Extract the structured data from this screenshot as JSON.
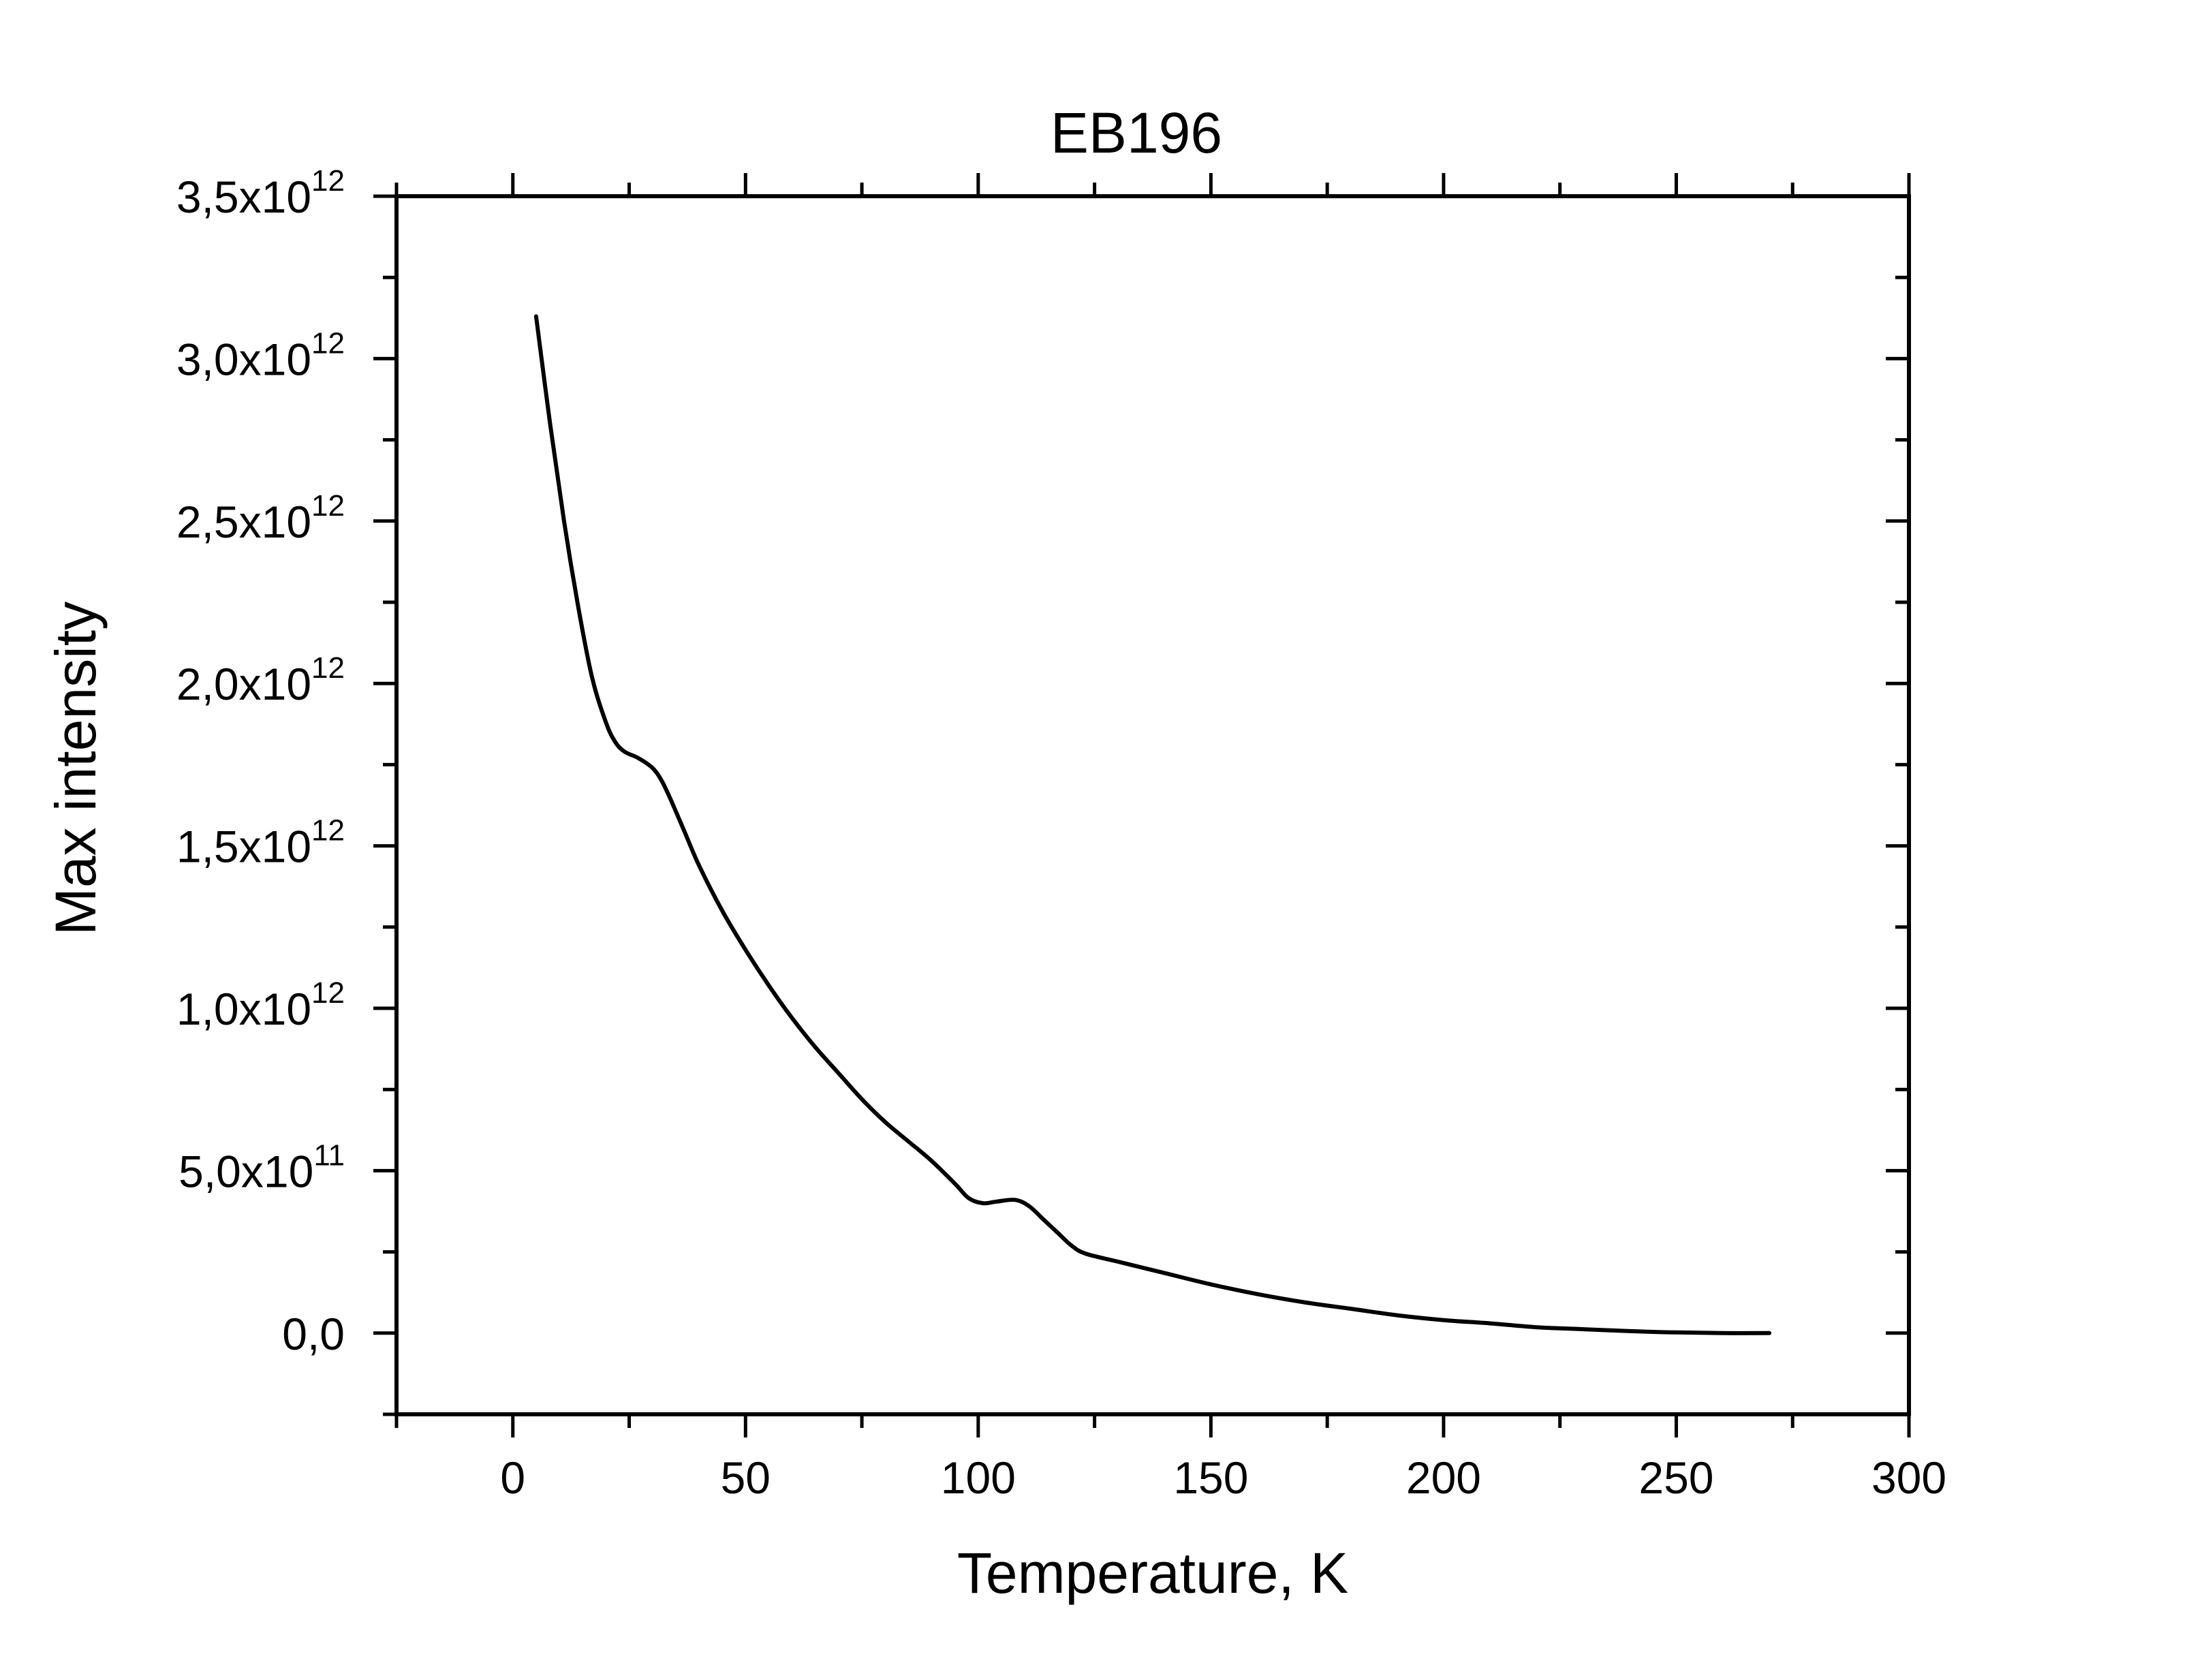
{
  "chart_data": {
    "type": "line",
    "title": "EB196",
    "xlabel": "Temperature, K",
    "ylabel": "Max intensity",
    "xlim": [
      -25,
      300
    ],
    "ylim": [
      -250000000000.0,
      3500000000000.0
    ],
    "grid": false,
    "legend": "none",
    "line_color": "#000000",
    "x_ticks": [
      {
        "value": 0,
        "label": "0"
      },
      {
        "value": 50,
        "label": "50"
      },
      {
        "value": 100,
        "label": "100"
      },
      {
        "value": 150,
        "label": "150"
      },
      {
        "value": 200,
        "label": "200"
      },
      {
        "value": 250,
        "label": "250"
      },
      {
        "value": 300,
        "label": "300"
      }
    ],
    "y_ticks": [
      {
        "value": 0,
        "mantissa": "0,0",
        "exp": ""
      },
      {
        "value": 500000000000.0,
        "mantissa": "5,0x10",
        "exp": "11"
      },
      {
        "value": 1000000000000.0,
        "mantissa": "1,0x10",
        "exp": "12"
      },
      {
        "value": 1500000000000.0,
        "mantissa": "1,5x10",
        "exp": "12"
      },
      {
        "value": 2000000000000.0,
        "mantissa": "2,0x10",
        "exp": "12"
      },
      {
        "value": 2500000000000.0,
        "mantissa": "2,5x10",
        "exp": "12"
      },
      {
        "value": 3000000000000.0,
        "mantissa": "3,0x10",
        "exp": "12"
      },
      {
        "value": 3500000000000.0,
        "mantissa": "3,5x10",
        "exp": "12"
      }
    ],
    "x_minor_step": 25,
    "y_minor_step": 250000000000.0,
    "series": [
      {
        "x": [
          5,
          8,
          11,
          14,
          17,
          20,
          22,
          24,
          27,
          30,
          32,
          34,
          37,
          40,
          45,
          50,
          55,
          60,
          65,
          70,
          75,
          80,
          85,
          90,
          95,
          98,
          101,
          104,
          108,
          111,
          114,
          117,
          120,
          123,
          130,
          140,
          150,
          160,
          170,
          180,
          190,
          200,
          210,
          220,
          230,
          240,
          250,
          260,
          270
        ],
        "y": [
          3130000000000.0,
          2800000000000.0,
          2500000000000.0,
          2240000000000.0,
          2020000000000.0,
          1880000000000.0,
          1820000000000.0,
          1790000000000.0,
          1770000000000.0,
          1740000000000.0,
          1700000000000.0,
          1640000000000.0,
          1540000000000.0,
          1440000000000.0,
          1300000000000.0,
          1180000000000.0,
          1070000000000.0,
          970000000000.0,
          880000000000.0,
          800000000000.0,
          720000000000.0,
          650000000000.0,
          590000000000.0,
          530000000000.0,
          460000000000.0,
          415000000000.0,
          400000000000.0,
          405000000000.0,
          410000000000.0,
          390000000000.0,
          350000000000.0,
          310000000000.0,
          270000000000.0,
          245000000000.0,
          220000000000.0,
          185000000000.0,
          150000000000.0,
          120000000000.0,
          95000000000.0,
          75000000000.0,
          55000000000.0,
          40000000000.0,
          30000000000.0,
          18000000000.0,
          12000000000.0,
          6000000000.0,
          2000000000.0,
          0.0,
          0.0
        ]
      }
    ]
  }
}
